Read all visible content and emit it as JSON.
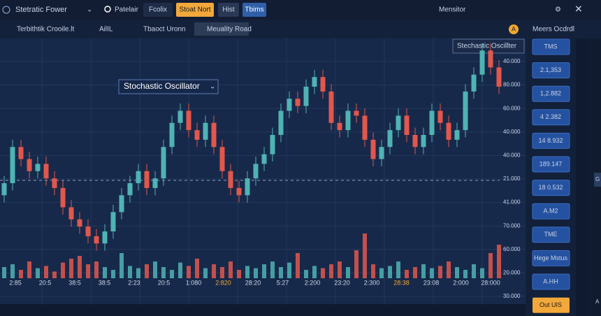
{
  "top_bar": {
    "title": "Stetratic Fower",
    "search": "Patelair",
    "buttons": [
      "Fcolix",
      "Stoat Nort",
      "Hist",
      "Tbims"
    ],
    "right": "Mensitor"
  },
  "toolbar": {
    "items": [
      "Terbithtik Crooile.lt",
      "AilIL",
      "Tbaoct Uronn",
      "Meuality Road"
    ],
    "badge": "A",
    "right": "Meers Ocdrdl"
  },
  "overlay": {
    "label": "Stochastic Oscillator",
    "dropdown": "Stechastic Oscillter"
  },
  "chart_data": {
    "type": "candlestick",
    "ylim": [
      0,
      100
    ],
    "volume_ylim": [
      0,
      100
    ],
    "up_color": "#4fb3b3",
    "down_color": "#e2574c",
    "open": [
      35,
      40,
      55,
      50,
      45,
      48,
      42,
      38,
      30,
      25,
      22,
      18,
      15,
      20,
      28,
      35,
      40,
      45,
      38,
      42,
      55,
      65,
      70,
      62,
      58,
      65,
      55,
      45,
      38,
      35,
      42,
      48,
      52,
      60,
      70,
      75,
      72,
      80,
      84,
      78,
      65,
      62,
      70,
      68,
      58,
      50,
      55,
      62,
      68,
      60,
      55,
      60,
      70,
      65,
      58,
      62,
      78,
      85,
      95,
      88
    ],
    "high": [
      43,
      58,
      58,
      53,
      51,
      51,
      45,
      41,
      33,
      28,
      25,
      21,
      23,
      31,
      38,
      43,
      48,
      48,
      45,
      58,
      68,
      73,
      73,
      65,
      68,
      68,
      58,
      48,
      41,
      45,
      51,
      55,
      63,
      73,
      78,
      78,
      83,
      87,
      87,
      81,
      68,
      73,
      73,
      71,
      61,
      58,
      65,
      71,
      71,
      63,
      63,
      73,
      73,
      68,
      65,
      81,
      88,
      98,
      98,
      91
    ],
    "low": [
      32,
      37,
      47,
      42,
      42,
      39,
      35,
      27,
      22,
      19,
      15,
      12,
      12,
      17,
      25,
      32,
      37,
      35,
      35,
      39,
      52,
      62,
      59,
      55,
      55,
      52,
      42,
      35,
      32,
      32,
      39,
      45,
      49,
      57,
      67,
      69,
      69,
      77,
      75,
      62,
      59,
      59,
      65,
      55,
      47,
      47,
      52,
      59,
      57,
      52,
      52,
      57,
      62,
      55,
      55,
      59,
      75,
      82,
      85,
      77
    ],
    "close": [
      40,
      55,
      50,
      45,
      48,
      42,
      38,
      30,
      25,
      22,
      18,
      15,
      20,
      28,
      35,
      40,
      45,
      38,
      42,
      55,
      65,
      70,
      62,
      58,
      65,
      55,
      45,
      38,
      35,
      42,
      48,
      52,
      60,
      70,
      75,
      72,
      80,
      84,
      78,
      65,
      62,
      70,
      68,
      58,
      50,
      55,
      62,
      68,
      60,
      55,
      60,
      70,
      65,
      58,
      62,
      78,
      85,
      95,
      88,
      80
    ],
    "volume": [
      20,
      25,
      15,
      30,
      18,
      22,
      12,
      28,
      35,
      40,
      25,
      30,
      20,
      15,
      45,
      22,
      18,
      25,
      30,
      20,
      15,
      28,
      22,
      35,
      18,
      25,
      20,
      30,
      15,
      22,
      18,
      25,
      30,
      20,
      28,
      45,
      15,
      22,
      18,
      25,
      30,
      20,
      50,
      80,
      25,
      18,
      22,
      30,
      15,
      20,
      25,
      18,
      22,
      30,
      20,
      15,
      25,
      18,
      45,
      60
    ]
  },
  "price_axis": [
    "40.000",
    "80.000",
    "60.000",
    "40.000",
    "40.000",
    "21.000",
    "41.000",
    "70.000",
    "60.000",
    "20.000",
    "30.000"
  ],
  "time_axis": [
    "2:85",
    "20:5",
    "38:5",
    "38:5",
    "2:23",
    "20:5",
    "1:080",
    "2:820",
    "28:20",
    "5:27",
    "2:200",
    "23:20",
    "2:300",
    "28:38",
    "23:08",
    "2:000",
    "28:000"
  ],
  "sidebar": [
    "TMS",
    "2.1,353",
    "1,2.882",
    "4 2.382",
    "14 8.932",
    "189.147",
    "18 0.532",
    "A.M2",
    "TME",
    "Hege Mstus",
    "A.HH",
    "Out UIS"
  ],
  "edge": [
    "G",
    "A"
  ]
}
